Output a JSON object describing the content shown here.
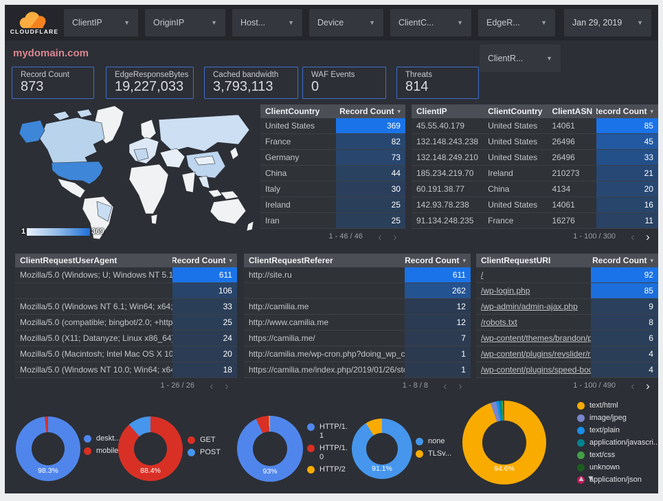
{
  "ui": {
    "sort_caret": "▾",
    "chip_caret": "▼",
    "prev_icon": "‹",
    "next_icon": "›"
  },
  "colors": {
    "accent_blue": "#1a73e8",
    "card_border": "#3f6fd1",
    "title_pink": "#d98690",
    "donut_blue": "#5086ec",
    "donut_red": "#d93025",
    "donut_yellow": "#f9ab00"
  },
  "topbar": {
    "logo_text": "CLOUDFLARE",
    "filters": [
      {
        "label": "ClientIP"
      },
      {
        "label": "OriginIP"
      },
      {
        "label": "Host..."
      },
      {
        "label": "Device"
      },
      {
        "label": "ClientC..."
      },
      {
        "label": "EdgeR..."
      }
    ],
    "date_label": "Jan 29, 2019",
    "filters_row2": [
      {
        "label": "ClientR..."
      }
    ]
  },
  "page_title": "mydomain.com",
  "scorecards": [
    {
      "label": "Record Count",
      "value": "873"
    },
    {
      "label": "EdgeResponseBytes",
      "value": "19,227,033"
    },
    {
      "label": "Cached bandwidth",
      "value": "3,793,113"
    },
    {
      "label": "WAF Events",
      "value": "0"
    },
    {
      "label": "Threats",
      "value": "814"
    }
  ],
  "map": {
    "legend_min": "1",
    "legend_max": "369"
  },
  "tables": {
    "clientCountry": {
      "columns": [
        "ClientCountry",
        "Record Count"
      ],
      "widths": [
        "52%",
        "48%"
      ],
      "bar_col": 1,
      "max": 369,
      "link_col": -1,
      "rows": [
        [
          "United States",
          "369"
        ],
        [
          "France",
          "82"
        ],
        [
          "Germany",
          "73"
        ],
        [
          "China",
          "44"
        ],
        [
          "Italy",
          "30"
        ],
        [
          "Ireland",
          "25"
        ],
        [
          "Iran",
          "25"
        ]
      ],
      "pagination": "1 - 46 / 46",
      "next_active": false
    },
    "clientIP": {
      "columns": [
        "ClientIP",
        "ClientCountry",
        "ClientASN",
        "Record Count"
      ],
      "widths": [
        "29%",
        "26%",
        "20%",
        "25%"
      ],
      "bar_col": 3,
      "max": 85,
      "link_col": -1,
      "rows": [
        [
          "45.55.40.179",
          "United States",
          "14061",
          "85"
        ],
        [
          "132.148.243.238",
          "United States",
          "26496",
          "45"
        ],
        [
          "132.148.249.210",
          "United States",
          "26496",
          "33"
        ],
        [
          "185.234.219.70",
          "Ireland",
          "210273",
          "21"
        ],
        [
          "60.191.38.77",
          "China",
          "4134",
          "20"
        ],
        [
          "142.93.78.238",
          "United States",
          "14061",
          "16"
        ],
        [
          "91.134.248.235",
          "France",
          "16276",
          "11"
        ]
      ],
      "pagination": "1 - 100 / 300",
      "next_active": true
    },
    "userAgent": {
      "columns": [
        "ClientRequestUserAgent",
        "Record Count"
      ],
      "widths": [
        "71%",
        "29%"
      ],
      "bar_col": 1,
      "max": 611,
      "link_col": -1,
      "rows": [
        [
          "Mozilla/5.0 (Windows; U; Windows NT 5.1; en-U...",
          "611"
        ],
        [
          "",
          "106"
        ],
        [
          "Mozilla/5.0 (Windows NT 6.1; Win64; x64; rv:64...",
          "33"
        ],
        [
          "Mozilla/5.0 (compatible; bingbot/2.0; +http://w...",
          "25"
        ],
        [
          "Mozilla/5.0 (X11; Datanyze; Linux x86_64) Appl...",
          "24"
        ],
        [
          "Mozilla/5.0 (Macintosh; Intel Mac OS X 10.11; r...",
          "20"
        ],
        [
          "Mozilla/5.0 (Windows NT 10.0; Win64; x64) App...",
          "18"
        ]
      ],
      "pagination": "1 - 26 / 26",
      "next_active": false
    },
    "referer": {
      "columns": [
        "ClientRequestReferer",
        "Record Count"
      ],
      "widths": [
        "71%",
        "29%"
      ],
      "bar_col": 1,
      "max": 611,
      "link_col": -1,
      "rows": [
        [
          "http://site.ru",
          "611"
        ],
        [
          "",
          "262"
        ],
        [
          "http://camilia.me",
          "12"
        ],
        [
          "http://www.camilia.me",
          "12"
        ],
        [
          "https://camilia.me/",
          "7"
        ],
        [
          "http://camilia.me/wp-cron.php?doing_wp_cron...",
          "1"
        ],
        [
          "https://camilia.me/index.php/2019/01/26/stor...",
          "1"
        ]
      ],
      "pagination": "1 - 8 / 8",
      "next_active": false
    },
    "uri": {
      "columns": [
        "ClientRequestURI",
        "Record Count"
      ],
      "widths": [
        "63%",
        "37%"
      ],
      "bar_col": 1,
      "max": 92,
      "link_col": 0,
      "rows": [
        [
          "/",
          "92"
        ],
        [
          "/wp-login.php",
          "85"
        ],
        [
          "/wp-admin/admin-ajax.php",
          "9"
        ],
        [
          "/robots.txt",
          "8"
        ],
        [
          "/wp-content/themes/brandon/plu...",
          "6"
        ],
        [
          "/wp-content/plugins/revslider/rs-p...",
          "4"
        ],
        [
          "/wp-content/plugins/speed-booste...",
          "4"
        ]
      ],
      "pagination": "1 - 100 / 490",
      "next_active": true
    }
  },
  "donuts": [
    {
      "name": "device-type",
      "label_pct": "98.3%",
      "slices": [
        {
          "name": "deskt...",
          "value": 98.3,
          "color": "#5086ec"
        },
        {
          "name": "mobile",
          "value": 1.7,
          "color": "#d93025"
        }
      ]
    },
    {
      "name": "request-method",
      "label_pct": "88.4%",
      "slices": [
        {
          "name": "GET",
          "value": 88.4,
          "color": "#d93025"
        },
        {
          "name": "POST",
          "value": 11.6,
          "color": "#4596ec"
        }
      ]
    },
    {
      "name": "http-protocol",
      "label_pct": "93%",
      "slices": [
        {
          "name": "HTTP/1.1",
          "value": 93,
          "color": "#5086ec"
        },
        {
          "name": "HTTP/1.0",
          "value": 6.4,
          "color": "#d93025"
        },
        {
          "name": "HTTP/2",
          "value": 0.6,
          "color": "#f9ab00"
        }
      ]
    },
    {
      "name": "tls-version",
      "label_pct": "91.1%",
      "slices": [
        {
          "name": "none",
          "value": 91.1,
          "color": "#4596ec"
        },
        {
          "name": "TLSv...",
          "value": 8.9,
          "color": "#f9ab00"
        }
      ]
    },
    {
      "name": "content-type",
      "label_pct": "94.6%",
      "slices": [
        {
          "name": "text/html",
          "value": 94.6,
          "color": "#f9ab00"
        },
        {
          "name": "image/jpeg",
          "value": 2.2,
          "color": "#7986cb"
        },
        {
          "name": "text/plain",
          "value": 1.1,
          "color": "#1a90e8"
        },
        {
          "name": "application/javascri...",
          "value": 1.0,
          "color": "#00838f"
        },
        {
          "name": "text/css",
          "value": 0.6,
          "color": "#43a047"
        },
        {
          "name": "unknown",
          "value": 0.3,
          "color": "#1b5e20"
        },
        {
          "name": "application/json",
          "value": 0.2,
          "color": "#c2185b"
        }
      ]
    }
  ],
  "legend_scroll": "▲▼"
}
